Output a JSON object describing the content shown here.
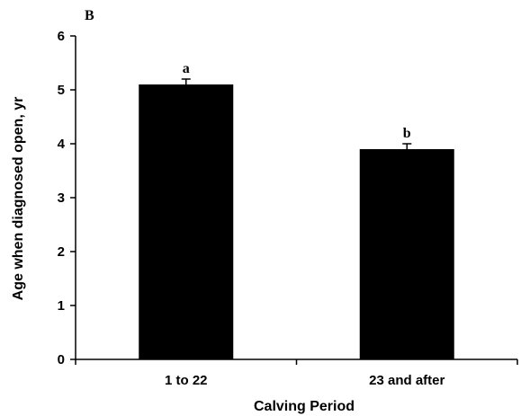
{
  "panel_label": "B",
  "chart_data": {
    "type": "bar",
    "title": "",
    "xlabel": "Calving Period",
    "ylabel": "Age when diagnosed open, yr",
    "ylim": [
      0,
      6
    ],
    "yticks": [
      0,
      1,
      2,
      3,
      4,
      5,
      6
    ],
    "categories": [
      "1 to 22",
      "23 and after"
    ],
    "values": [
      5.1,
      3.9
    ],
    "errors": [
      0.1,
      0.1
    ],
    "significance_letters": [
      "a",
      "b"
    ],
    "bar_color": "#000000",
    "grid": false,
    "legend": "none"
  }
}
